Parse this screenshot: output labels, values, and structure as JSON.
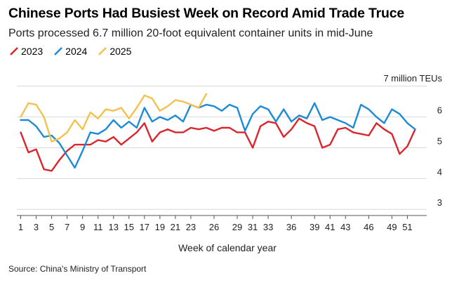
{
  "title": "Chinese Ports Had Busiest Week on Record Amid Trade Truce",
  "subtitle": "Ports processed 6.7 million 20-foot equivalent container units in mid-June",
  "source": "Source: China's Ministry of Transport",
  "chart_data": {
    "type": "line",
    "xlabel": "Week of calendar year",
    "ylabel": "",
    "unit_label": "7 million TEUs",
    "ylim": [
      2.8,
      7.2
    ],
    "xlim": [
      0.5,
      53.5
    ],
    "y_ticks": [
      3,
      4,
      5,
      6
    ],
    "x_ticks": [
      1,
      3,
      5,
      7,
      9,
      11,
      13,
      15,
      17,
      19,
      21,
      23,
      26,
      29,
      31,
      33,
      36,
      39,
      41,
      43,
      46,
      49,
      51
    ],
    "grid": true,
    "legend_placement": "top-left",
    "series": [
      {
        "name": "2023",
        "color": "#d9262c",
        "x": [
          1,
          2,
          3,
          4,
          5,
          6,
          7,
          8,
          9,
          10,
          11,
          12,
          13,
          14,
          15,
          16,
          17,
          18,
          19,
          20,
          21,
          22,
          23,
          24,
          25,
          26,
          27,
          28,
          29,
          30,
          31,
          32,
          33,
          34,
          35,
          36,
          37,
          38,
          39,
          40,
          41,
          42,
          43,
          44,
          45,
          46,
          47,
          48,
          49,
          50,
          51,
          52
        ],
        "values": [
          5.5,
          4.85,
          4.95,
          4.3,
          4.25,
          4.6,
          4.9,
          5.1,
          5.1,
          5.1,
          5.25,
          5.2,
          5.35,
          5.1,
          5.3,
          5.5,
          5.8,
          5.2,
          5.5,
          5.6,
          5.5,
          5.5,
          5.65,
          5.6,
          5.65,
          5.55,
          5.65,
          5.65,
          5.5,
          5.5,
          5.0,
          5.7,
          5.85,
          5.8,
          5.35,
          5.6,
          5.95,
          5.8,
          5.7,
          5.0,
          5.1,
          5.6,
          5.65,
          5.5,
          5.45,
          5.4,
          5.8,
          5.6,
          5.45,
          4.8,
          5.05,
          5.6
        ]
      },
      {
        "name": "2024",
        "color": "#1c8bd6",
        "x": [
          1,
          2,
          3,
          4,
          5,
          6,
          7,
          8,
          9,
          10,
          11,
          12,
          13,
          14,
          15,
          16,
          17,
          18,
          19,
          20,
          21,
          22,
          23,
          24,
          25,
          26,
          27,
          28,
          29,
          30,
          31,
          32,
          33,
          34,
          35,
          36,
          37,
          38,
          39,
          40,
          41,
          42,
          43,
          44,
          45,
          46,
          47,
          48,
          49,
          50,
          51,
          52
        ],
        "values": [
          5.9,
          5.9,
          5.7,
          5.35,
          5.4,
          5.15,
          4.75,
          4.35,
          4.9,
          5.5,
          5.45,
          5.6,
          5.9,
          5.65,
          5.85,
          5.65,
          6.3,
          5.85,
          6.0,
          5.9,
          6.05,
          5.85,
          6.4,
          6.3,
          6.4,
          6.35,
          6.2,
          6.4,
          6.3,
          5.55,
          6.1,
          6.35,
          6.25,
          5.85,
          6.25,
          5.85,
          6.05,
          5.95,
          6.45,
          5.9,
          6.0,
          5.9,
          5.8,
          5.65,
          6.4,
          6.25,
          6.0,
          5.8,
          6.25,
          6.1,
          5.8,
          5.6
        ]
      },
      {
        "name": "2025",
        "color": "#f2c14e",
        "x": [
          1,
          2,
          3,
          4,
          5,
          6,
          7,
          8,
          9,
          10,
          11,
          12,
          13,
          14,
          15,
          16,
          17,
          18,
          19,
          20,
          21,
          22,
          23,
          24,
          25
        ],
        "values": [
          6.0,
          6.45,
          6.4,
          6.0,
          5.2,
          5.3,
          5.5,
          5.9,
          5.6,
          6.15,
          5.95,
          6.25,
          6.2,
          6.3,
          5.95,
          6.3,
          6.7,
          6.6,
          6.2,
          6.35,
          6.55,
          6.5,
          6.4,
          6.3,
          6.75
        ]
      }
    ]
  }
}
